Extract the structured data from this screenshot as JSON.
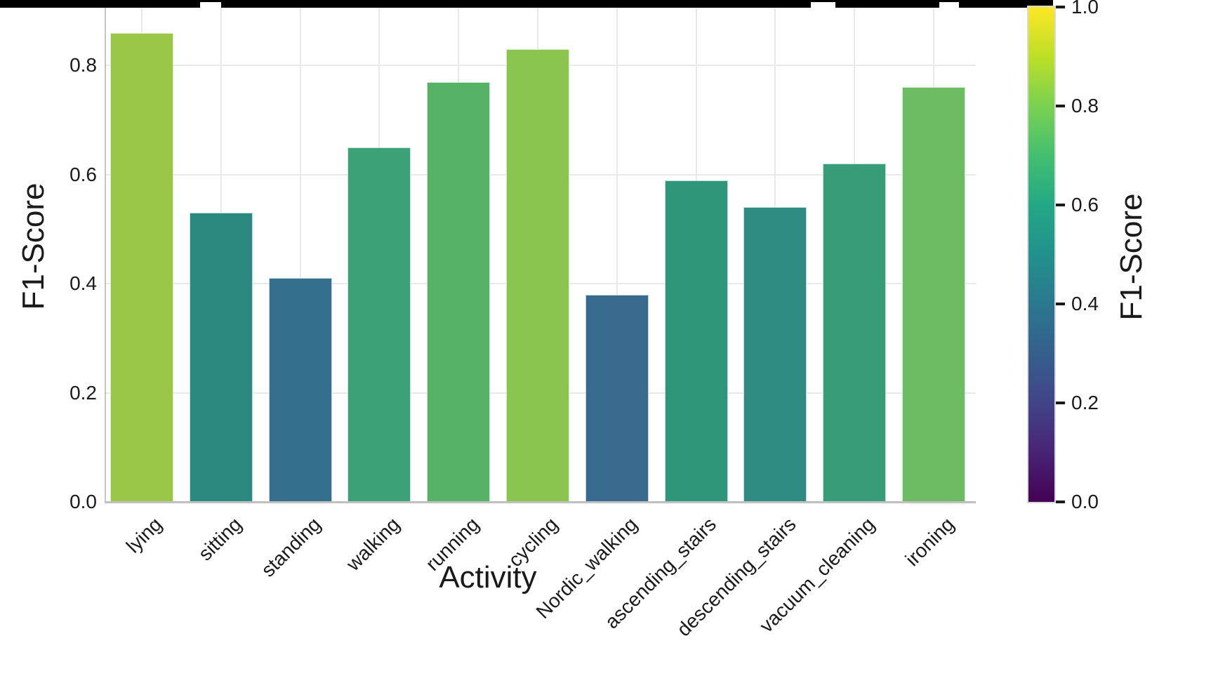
{
  "chart_data": {
    "type": "bar",
    "title": "",
    "xlabel": "Activity",
    "ylabel": "F1-Score",
    "categories": [
      "lying",
      "sitting",
      "standing",
      "walking",
      "running",
      "cycling",
      "Nordic_walking",
      "ascending_stairs",
      "descending_stairs",
      "vacuum_cleaning",
      "ironing"
    ],
    "values": [
      0.86,
      0.53,
      0.41,
      0.65,
      0.77,
      0.83,
      0.38,
      0.59,
      0.54,
      0.62,
      0.76
    ],
    "bar_colors": [
      "#9ac647",
      "#2b897f",
      "#356f8e",
      "#3da177",
      "#56b365",
      "#8ac54f",
      "#386a8e",
      "#2f9679",
      "#2d8b81",
      "#379d78",
      "#6dbb63"
    ],
    "ylim": [
      0,
      0.91
    ],
    "yticks": [
      0.0,
      0.2,
      0.4,
      0.6,
      0.8
    ],
    "grid": true,
    "legend_position": "none",
    "colorbar": {
      "label": "F1-Score",
      "ticks": [
        0.0,
        0.2,
        0.4,
        0.6,
        0.8,
        1.0
      ],
      "range": [
        0,
        1
      ],
      "colormap": "viridis",
      "gradient_stops": [
        "#440154",
        "#482475",
        "#414487",
        "#355f8d",
        "#2a788e",
        "#21918c",
        "#22a884",
        "#44bf70",
        "#7ad151",
        "#bddf26",
        "#fde725"
      ]
    }
  },
  "colors": {
    "text": "#1a1a1a",
    "gridline": "#e9e9e9",
    "spine": "#c6c6c6",
    "baseline": "#c0c0c0",
    "background": "#ffffff",
    "top_bar": "#000000",
    "bar_edge": "rgba(255,255,255,0.7)"
  }
}
